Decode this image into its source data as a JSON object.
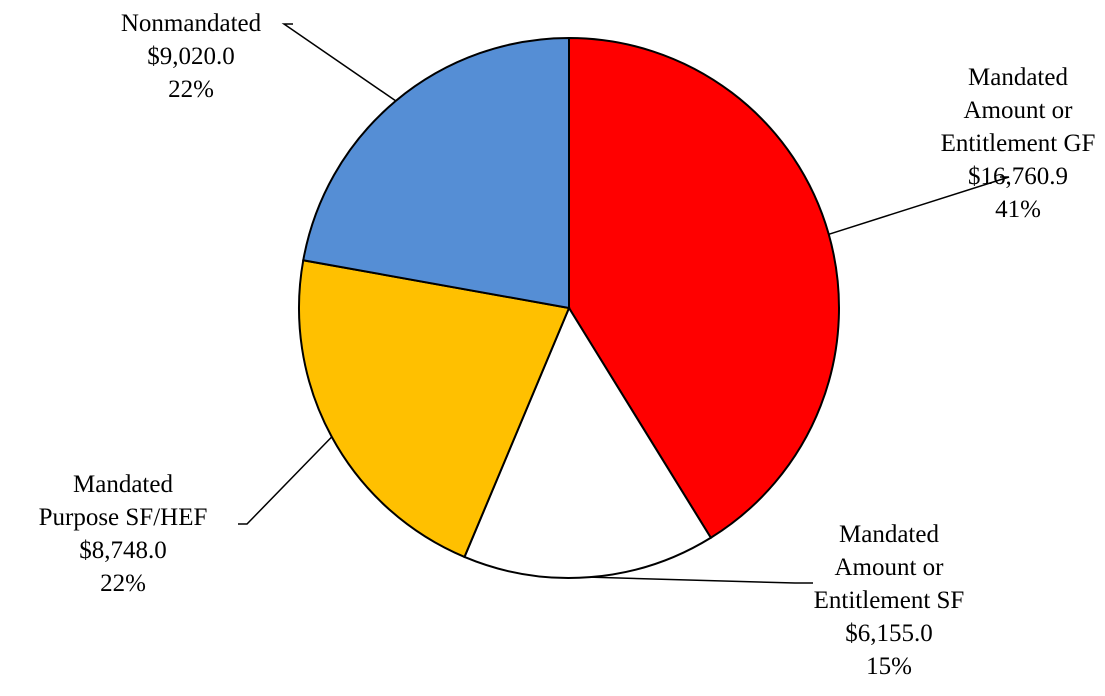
{
  "chart_data": {
    "type": "pie",
    "start_angle_deg": 0,
    "direction": "clockwise",
    "slices": [
      {
        "label": [
          "Mandated",
          "Amount or",
          "Entitlement GF"
        ],
        "value_text": "$16,760.9",
        "percent_text": "41%",
        "value": 16760.9,
        "color": "#FF0000"
      },
      {
        "label": [
          "Mandated",
          "Amount or",
          "Entitlement SF"
        ],
        "value_text": "$6,155.0",
        "percent_text": "15%",
        "value": 6155.0,
        "color": "#FFFFFF"
      },
      {
        "label": [
          "Mandated",
          "Purpose SF/HEF"
        ],
        "value_text": "$8,748.0",
        "percent_text": "22%",
        "value": 8748.0,
        "color": "#FFC000"
      },
      {
        "label": [
          "Nonmandated"
        ],
        "value_text": "$9,020.0",
        "percent_text": "22%",
        "value": 9020.0,
        "color": "#558ED5"
      }
    ]
  }
}
